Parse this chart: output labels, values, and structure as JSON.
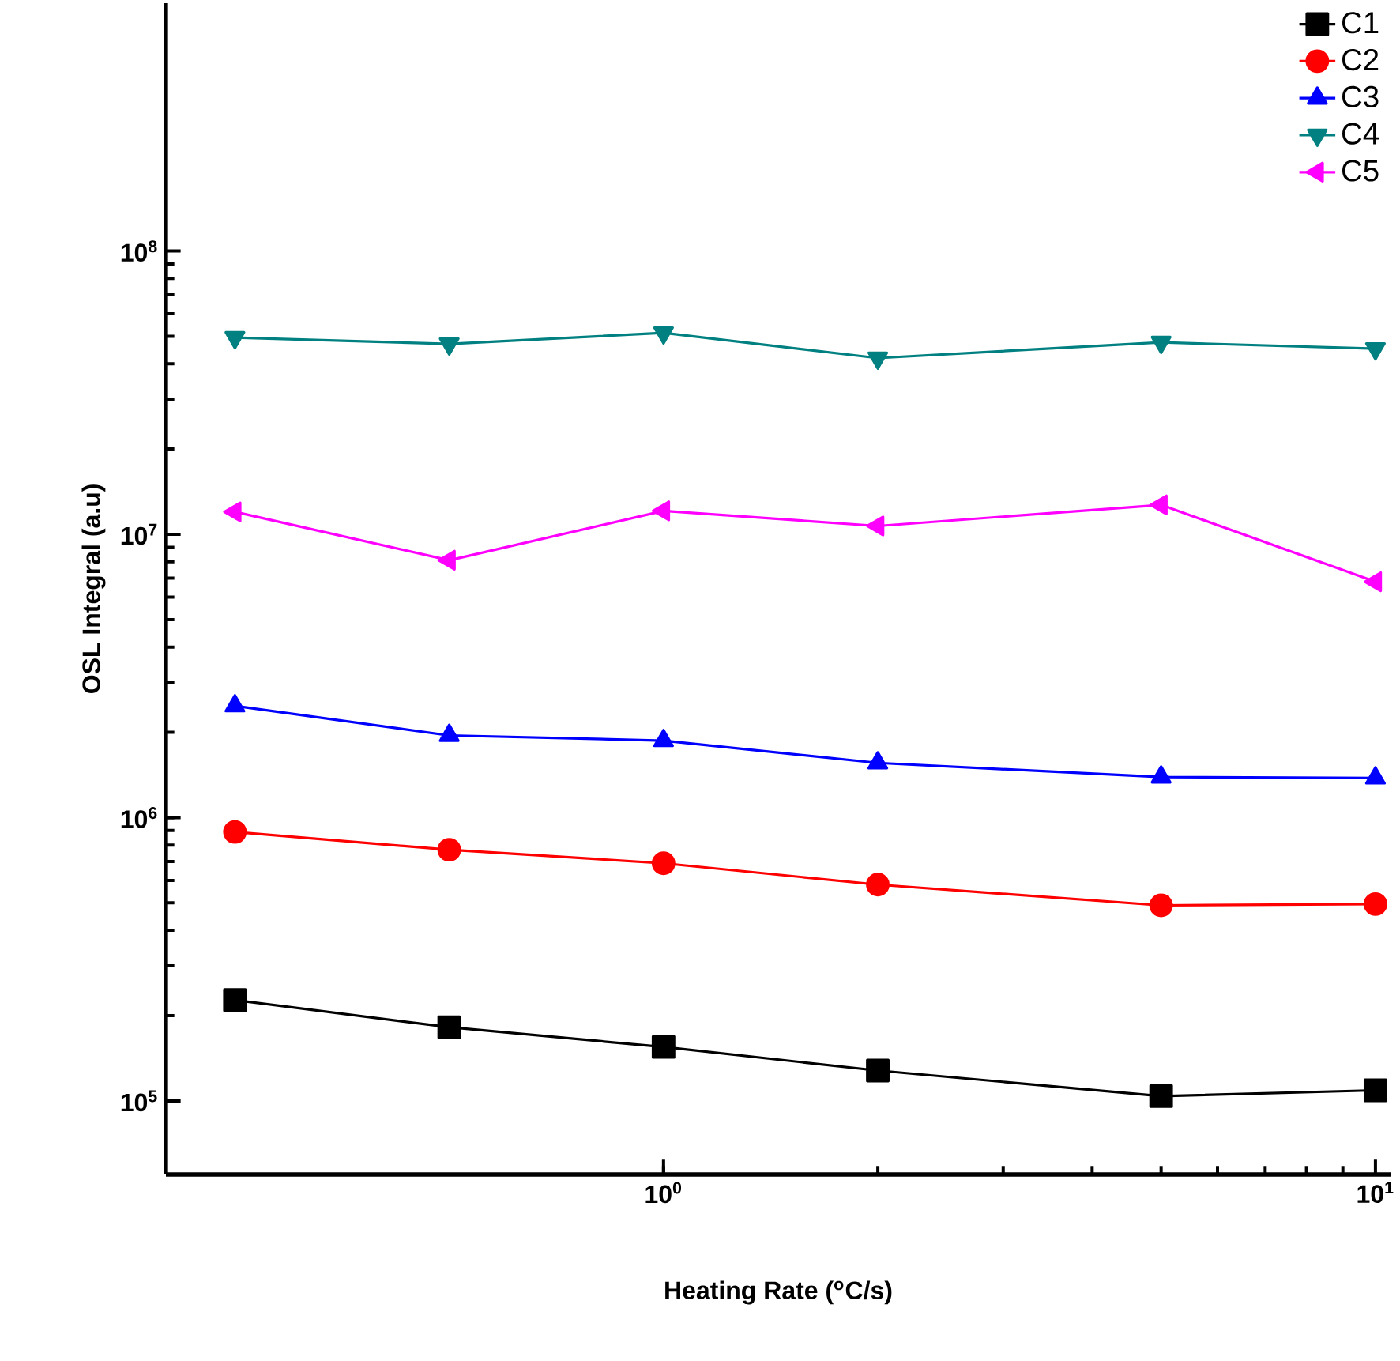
{
  "chart_data": {
    "type": "line",
    "xlabel": "Heating Rate ($^{o}$C/s)",
    "ylabel": "OSL Integral (a.u)",
    "log": "xy",
    "legend": "top right",
    "grid": false,
    "x": [
      0.25,
      0.5,
      1,
      2,
      5,
      10
    ],
    "xlim": [
      0.2,
      10.5
    ],
    "ylim": [
      55000,
      750000000
    ],
    "xticks": [
      {
        "value": 1,
        "label": "10$^{0}$"
      },
      {
        "value": 10,
        "label": "10$^{1}$"
      }
    ],
    "yticks": [
      {
        "value": 100000,
        "label": "10$^{5}$"
      },
      {
        "value": 1000000,
        "label": "10$^{6}$"
      },
      {
        "value": 10000000,
        "label": "10$^{7}$"
      },
      {
        "value": 100000000,
        "label": "10$^{8}$"
      }
    ],
    "series": [
      {
        "name": "C1",
        "color": "#000000",
        "marker": "square",
        "values": [
          227000,
          182000,
          155000,
          128000,
          104000,
          109000
        ]
      },
      {
        "name": "C2",
        "color": "#ff0000",
        "marker": "circle",
        "values": [
          890000,
          770000,
          690000,
          580000,
          490000,
          495000
        ]
      },
      {
        "name": "C3",
        "color": "#0000ff",
        "marker": "triangle",
        "values": [
          2480000,
          1950000,
          1870000,
          1560000,
          1390000,
          1380000
        ]
      },
      {
        "name": "C4",
        "color": "#008080",
        "marker": "triangle-down",
        "values": [
          49500000,
          47000000,
          51400000,
          41900000,
          47600000,
          45200000
        ]
      },
      {
        "name": "C5",
        "color": "#ff00ff",
        "marker": "triangle-left",
        "values": [
          12000000,
          8100000,
          12100000,
          10700000,
          12700000,
          6800000
        ]
      }
    ]
  }
}
